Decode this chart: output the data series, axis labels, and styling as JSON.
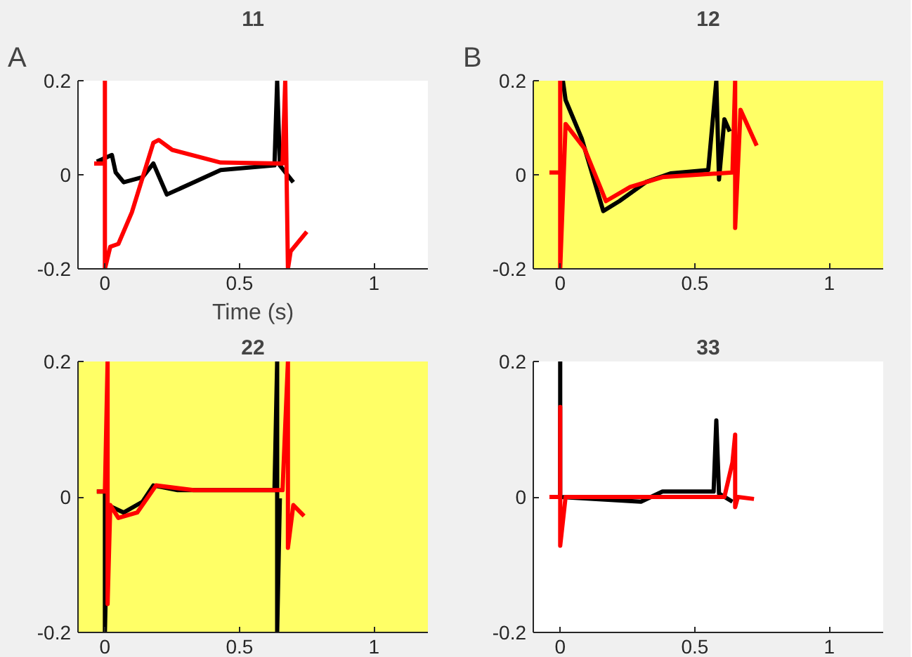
{
  "chart_data": [
    {
      "type": "line",
      "title": "11",
      "xlabel": "Time (s)",
      "annotations": [
        "A"
      ],
      "xlim": [
        -0.1,
        1.2
      ],
      "ylim": [
        -0.2,
        0.2
      ],
      "xticks": [
        0,
        0.5,
        1
      ],
      "yticks": [
        -0.2,
        0,
        0.2
      ],
      "grid": false,
      "series": [
        {
          "color": "#000000",
          "x": [
            -0.03,
            0.026,
            0.04,
            0.07,
            0.14,
            0.18,
            0.23,
            0.33,
            0.43,
            0.63,
            0.64,
            0.65,
            0.7
          ],
          "values": [
            0.028,
            0.042,
            0.005,
            -0.016,
            -0.005,
            0.024,
            -0.042,
            -0.016,
            0.01,
            0.02,
            0.2,
            0.02,
            -0.016
          ]
        },
        {
          "color": "#ff0000",
          "x": [
            -0.04,
            0,
            0,
            0,
            0.02,
            0.05,
            0.1,
            0.18,
            0.2,
            0.25,
            0.43,
            0.66,
            0.67,
            0.68,
            0.69,
            0.72,
            0.75
          ],
          "values": [
            0.024,
            0.024,
            0.2,
            -0.2,
            -0.153,
            -0.147,
            -0.08,
            0.068,
            0.074,
            0.053,
            0.026,
            0.024,
            0.2,
            -0.2,
            -0.163,
            -0.142,
            -0.121
          ]
        }
      ]
    },
    {
      "type": "line",
      "title": "12",
      "annotations": [
        "B"
      ],
      "xlim": [
        -0.1,
        1.2
      ],
      "ylim": [
        -0.2,
        0.2
      ],
      "xticks": [
        0,
        0.5,
        1
      ],
      "yticks": [
        -0.2,
        0,
        0.2
      ],
      "grid": false,
      "bands": [
        {
          "axis": "y",
          "from": -0.2,
          "to": 0.2,
          "color": "#ffff66"
        }
      ],
      "series": [
        {
          "color": "#000000",
          "x": [
            0.01,
            0.02,
            0.08,
            0.16,
            0.22,
            0.32,
            0.41,
            0.55,
            0.58,
            0.59,
            0.61,
            0.63
          ],
          "values": [
            0.2,
            0.159,
            0.077,
            -0.077,
            -0.056,
            -0.015,
            0.003,
            0.01,
            0.2,
            -0.01,
            0.118,
            0.092
          ]
        },
        {
          "color": "#ff0000",
          "x": [
            -0.04,
            0,
            0,
            0,
            0.02,
            0.09,
            0.17,
            0.26,
            0.38,
            0.64,
            0.65,
            0.65,
            0.67,
            0.73
          ],
          "values": [
            0.005,
            0.005,
            0.2,
            -0.2,
            0.108,
            0.056,
            -0.056,
            -0.026,
            -0.005,
            0.005,
            0.2,
            -0.113,
            0.138,
            0.062
          ]
        }
      ]
    },
    {
      "type": "line",
      "title": "22",
      "xlim": [
        -0.1,
        1.2
      ],
      "ylim": [
        -0.2,
        0.2
      ],
      "xticks": [
        0,
        0.5,
        1
      ],
      "yticks": [
        -0.2,
        0,
        0.2
      ],
      "grid": false,
      "bands": [
        {
          "axis": "y",
          "from": -0.2,
          "to": 0.2,
          "color": "#ffff66"
        }
      ],
      "series": [
        {
          "color": "#000000",
          "x": [
            -0.03,
            0,
            0,
            0.01,
            0.07,
            0.14,
            0.18,
            0.27,
            0.63,
            0.64,
            0.64,
            0.65
          ],
          "values": [
            0.008,
            0.008,
            -0.2,
            -0.012,
            -0.023,
            -0.007,
            0.017,
            0.01,
            0.01,
            0.2,
            -0.2,
            -0.002
          ]
        },
        {
          "color": "#ff0000",
          "x": [
            -0.03,
            0,
            0.01,
            0.01,
            0.02,
            0.05,
            0.12,
            0.19,
            0.33,
            0.66,
            0.68,
            0.68,
            0.7,
            0.74
          ],
          "values": [
            0.008,
            0.008,
            0.2,
            -0.158,
            -0.012,
            -0.031,
            -0.023,
            0.017,
            0.01,
            0.01,
            0.2,
            -0.075,
            -0.012,
            -0.028
          ]
        }
      ]
    },
    {
      "type": "line",
      "title": "33",
      "xlim": [
        -0.1,
        1.2
      ],
      "ylim": [
        -0.2,
        0.2
      ],
      "xticks": [
        0,
        0.5,
        1
      ],
      "yticks": [
        -0.2,
        0,
        0.2
      ],
      "grid": false,
      "series": [
        {
          "color": "#000000",
          "x": [
            0,
            0,
            0,
            0.3,
            0.38,
            0.57,
            0.58,
            0.59,
            0.64
          ],
          "values": [
            0,
            0.2,
            0,
            -0.007,
            0.008,
            0.008,
            0.113,
            0.005,
            -0.007
          ]
        },
        {
          "color": "#ff0000",
          "x": [
            -0.04,
            0,
            0,
            0,
            0.02,
            0.61,
            0.64,
            0.65,
            0.65,
            0.66,
            0.72
          ],
          "values": [
            0,
            0,
            0.133,
            -0.072,
            0,
            0,
            0.051,
            0.092,
            -0.015,
            0,
            -0.003
          ]
        }
      ]
    }
  ]
}
